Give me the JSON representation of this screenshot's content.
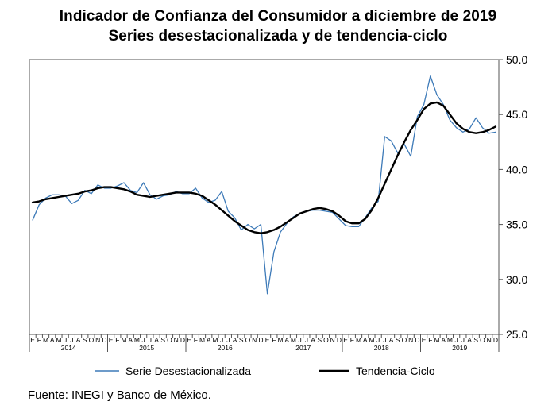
{
  "title": "Indicador de Confianza del Consumidor a diciembre de 2019",
  "subtitle": "Series desestacionalizada y de tendencia-ciclo",
  "source": "Fuente: INEGI y Banco de México.",
  "colors": {
    "serie": "#3d7ab8",
    "tendencia": "#000000",
    "frame": "#555555"
  },
  "chart_data": {
    "type": "line",
    "title": "Indicador de Confianza del Consumidor a diciembre de 2019",
    "subtitle": "Series desestacionalizada y de tendencia-ciclo",
    "ylim": [
      25,
      50
    ],
    "yticks": [
      "25.0",
      "30.0",
      "35.0",
      "40.0",
      "45.0",
      "50.0"
    ],
    "years": [
      "2014",
      "2015",
      "2016",
      "2017",
      "2018",
      "2019"
    ],
    "month_letters": [
      "E",
      "F",
      "M",
      "A",
      "M",
      "J",
      "J",
      "A",
      "S",
      "O",
      "N",
      "D"
    ],
    "legend": {
      "placement": "bottom",
      "entries": [
        "Serie Desestacionalizada",
        "Tendencia-Ciclo"
      ]
    },
    "grid": false,
    "series": [
      {
        "name": "Serie Desestacionalizada",
        "values": [
          35.4,
          36.8,
          37.4,
          37.7,
          37.7,
          37.6,
          36.9,
          37.2,
          38.1,
          37.8,
          38.6,
          38.3,
          38.3,
          38.5,
          38.8,
          38.1,
          37.9,
          38.8,
          37.7,
          37.3,
          37.6,
          37.7,
          38.0,
          37.8,
          37.8,
          38.3,
          37.4,
          37.0,
          37.2,
          38.0,
          36.2,
          35.6,
          34.5,
          35.0,
          34.6,
          35.0,
          28.7,
          32.5,
          34.3,
          35.1,
          35.7,
          36.0,
          36.2,
          36.3,
          36.3,
          36.2,
          36.1,
          35.5,
          34.9,
          34.8,
          34.8,
          35.6,
          36.5,
          37.1,
          43.0,
          42.6,
          41.5,
          42.3,
          41.2,
          44.8,
          45.9,
          48.5,
          46.8,
          45.9,
          44.5,
          43.8,
          43.4,
          43.7,
          44.7,
          43.8,
          43.3,
          43.4
        ]
      },
      {
        "name": "Tendencia-Ciclo",
        "values": [
          37.0,
          37.1,
          37.3,
          37.4,
          37.5,
          37.6,
          37.7,
          37.8,
          38.0,
          38.1,
          38.3,
          38.4,
          38.4,
          38.3,
          38.2,
          38.0,
          37.7,
          37.6,
          37.5,
          37.6,
          37.7,
          37.8,
          37.9,
          37.9,
          37.9,
          37.8,
          37.6,
          37.2,
          36.8,
          36.3,
          35.8,
          35.3,
          34.9,
          34.5,
          34.3,
          34.2,
          34.3,
          34.5,
          34.8,
          35.2,
          35.6,
          36.0,
          36.2,
          36.4,
          36.5,
          36.4,
          36.2,
          35.8,
          35.3,
          35.1,
          35.1,
          35.5,
          36.3,
          37.4,
          38.7,
          40.0,
          41.3,
          42.5,
          43.6,
          44.5,
          45.5,
          46.0,
          46.1,
          45.8,
          45.0,
          44.2,
          43.7,
          43.4,
          43.3,
          43.4,
          43.6,
          43.9
        ]
      }
    ]
  }
}
